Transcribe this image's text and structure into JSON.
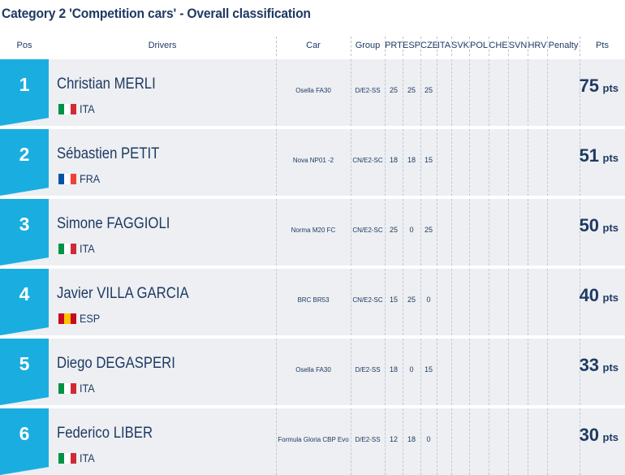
{
  "title": "Category 2 'Competition cars' - Overall classification",
  "headers": {
    "pos": "Pos",
    "drivers": "Drivers",
    "car": "Car",
    "group": "Group",
    "rounds": [
      "PRT",
      "ESP",
      "CZE",
      "ITA",
      "SVK",
      "POL",
      "CHE",
      "SVN",
      "HRV"
    ],
    "penalty": "Penalty",
    "pts": "Pts"
  },
  "pts_suffix": "pts",
  "rows": [
    {
      "pos": "1",
      "name": "Christian MERLI",
      "nat": "ITA",
      "flag": [
        "#009246",
        "#ffffff",
        "#ce2b37"
      ],
      "car": "Osella FA30",
      "group": "D/E2-SS",
      "scores": [
        "25",
        "25",
        "25"
      ],
      "pts": "75"
    },
    {
      "pos": "2",
      "name": "Sébastien PETIT",
      "nat": "FRA",
      "flag": [
        "#0055a4",
        "#ffffff",
        "#ef4135"
      ],
      "car": "Nova NP01 -2",
      "group": "CN/E2-SC",
      "scores": [
        "18",
        "18",
        "15"
      ],
      "pts": "51"
    },
    {
      "pos": "3",
      "name": "Simone FAGGIOLI",
      "nat": "ITA",
      "flag": [
        "#009246",
        "#ffffff",
        "#ce2b37"
      ],
      "car": "Norma M20 FC",
      "group": "CN/E2-SC",
      "scores": [
        "25",
        "0",
        "25"
      ],
      "pts": "50"
    },
    {
      "pos": "4",
      "name": "Javier VILLA GARCIA",
      "nat": "ESP",
      "flag": [
        "#c60b1e",
        "#ffc400",
        "#c60b1e"
      ],
      "car": "BRC BR53",
      "group": "CN/E2-SC",
      "scores": [
        "15",
        "25",
        "0"
      ],
      "pts": "40"
    },
    {
      "pos": "5",
      "name": "Diego DEGASPERI",
      "nat": "ITA",
      "flag": [
        "#009246",
        "#ffffff",
        "#ce2b37"
      ],
      "car": "Osella FA30",
      "group": "D/E2-SS",
      "scores": [
        "18",
        "0",
        "15"
      ],
      "pts": "33"
    },
    {
      "pos": "6",
      "name": "Federico LIBER",
      "nat": "ITA",
      "flag": [
        "#009246",
        "#ffffff",
        "#ce2b37"
      ],
      "car": "Formula Gloria CBP Evo",
      "group": "D/E2-SS",
      "scores": [
        "12",
        "18",
        "0"
      ],
      "pts": "30"
    }
  ]
}
